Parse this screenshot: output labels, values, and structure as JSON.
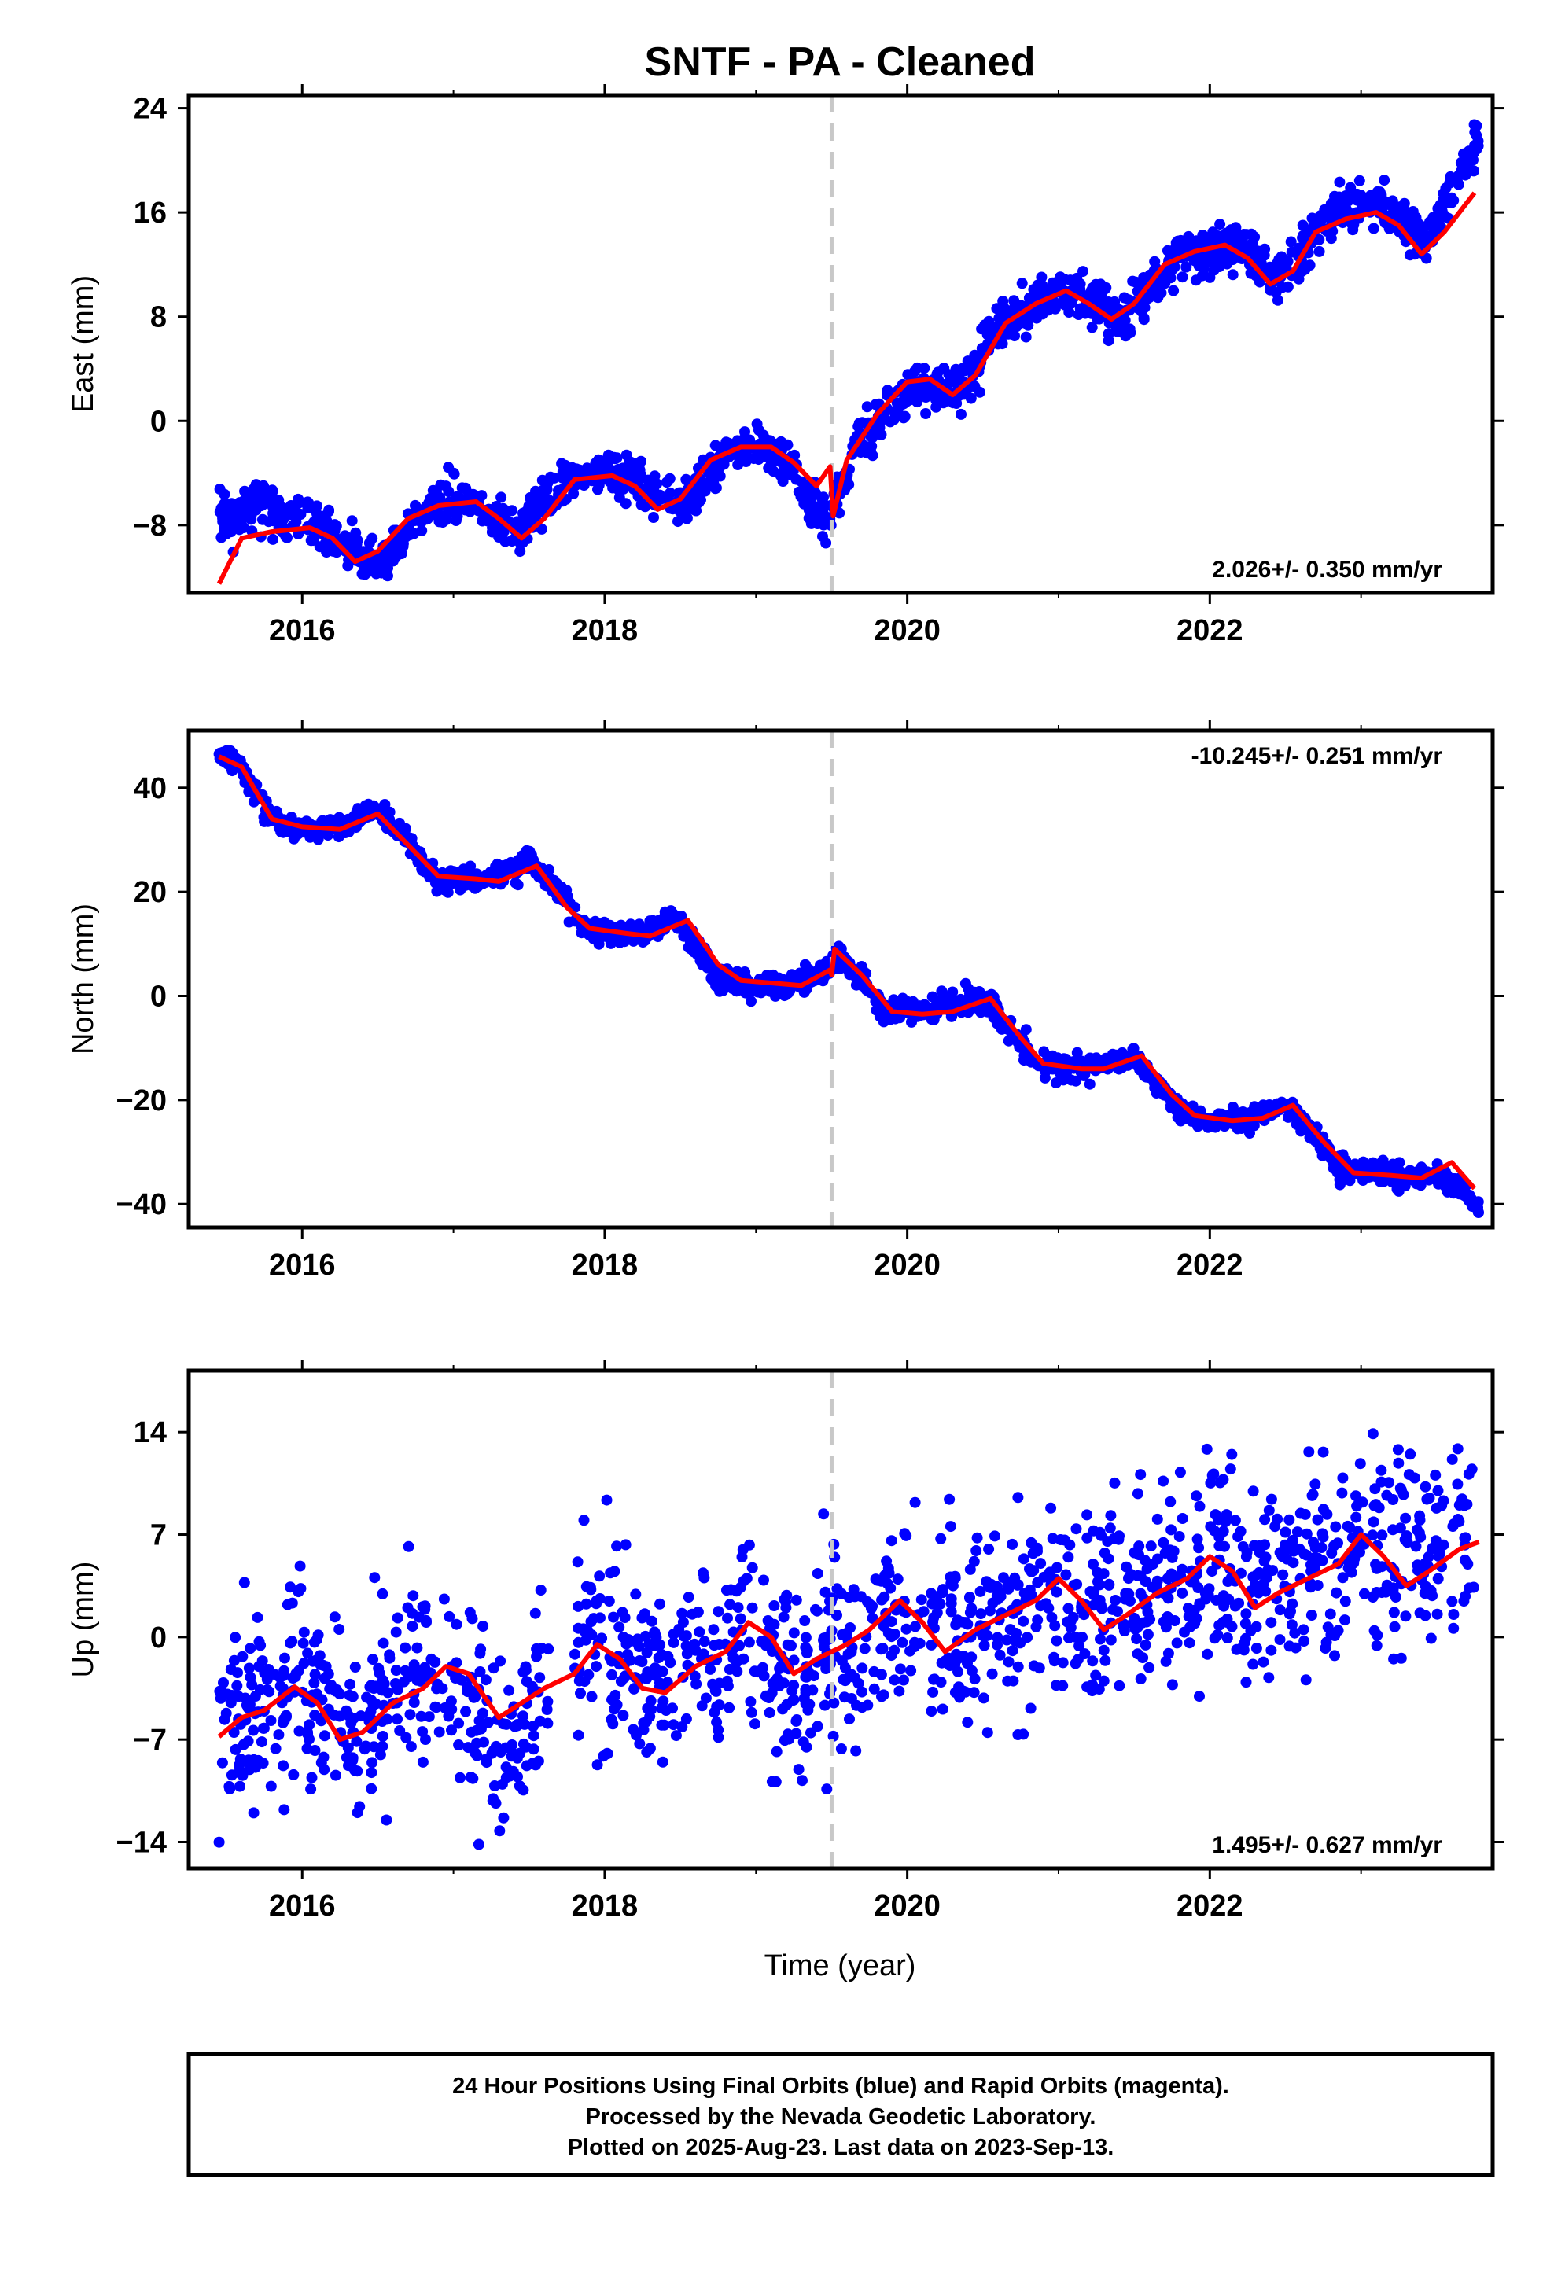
{
  "title": "SNTF  - PA - Cleaned",
  "xlabel": "Time (year)",
  "footer": {
    "line1": "24 Hour Positions Using Final Orbits (blue) and Rapid Orbits (magenta).",
    "line2": "Processed by the Nevada Geodetic Laboratory.",
    "line3": "Plotted on 2025-Aug-23. Last data on 2023-Sep-13."
  },
  "colors": {
    "points": "#0000ff",
    "model": "#ff0000",
    "event_line": "#c8c8c8",
    "frame": "#000000"
  },
  "chart_data": [
    {
      "type": "scatter",
      "name": "east",
      "ylabel": "East (mm)",
      "rate_label": "2.026+/- 0.350 mm/yr",
      "xlim": [
        2015.25,
        2023.87
      ],
      "ylim": [
        -13.2,
        25
      ],
      "xticks": [
        2016,
        2018,
        2020,
        2022
      ],
      "yticks": [
        -8,
        0,
        8,
        16,
        24
      ],
      "event_x": 2019.5,
      "scatter_anchors": [
        [
          2015.45,
          -7.5
        ],
        [
          2015.6,
          -7.0
        ],
        [
          2015.75,
          -6.0
        ],
        [
          2015.9,
          -8.0
        ],
        [
          2016.0,
          -7.0
        ],
        [
          2016.15,
          -8.5
        ],
        [
          2016.3,
          -10.0
        ],
        [
          2016.45,
          -11.0
        ],
        [
          2016.6,
          -10.0
        ],
        [
          2016.8,
          -7.0
        ],
        [
          2017.0,
          -6.0
        ],
        [
          2017.15,
          -6.0
        ],
        [
          2017.3,
          -8.0
        ],
        [
          2017.45,
          -8.5
        ],
        [
          2017.6,
          -6.0
        ],
        [
          2017.8,
          -4.5
        ],
        [
          2018.0,
          -4.0
        ],
        [
          2018.2,
          -4.5
        ],
        [
          2018.4,
          -6.0
        ],
        [
          2018.55,
          -6.5
        ],
        [
          2018.7,
          -4.0
        ],
        [
          2018.85,
          -2.5
        ],
        [
          2019.0,
          -2.0
        ],
        [
          2019.2,
          -3.0
        ],
        [
          2019.35,
          -6.0
        ],
        [
          2019.49,
          -8.0
        ],
        [
          2019.52,
          -6.0
        ],
        [
          2019.65,
          -2.0
        ],
        [
          2019.9,
          1.0
        ],
        [
          2020.05,
          2.5
        ],
        [
          2020.25,
          2.5
        ],
        [
          2020.4,
          3.0
        ],
        [
          2020.6,
          7.0
        ],
        [
          2020.8,
          9.0
        ],
        [
          2021.0,
          10.0
        ],
        [
          2021.2,
          9.5
        ],
        [
          2021.4,
          8.0
        ],
        [
          2021.6,
          10.0
        ],
        [
          2021.8,
          12.5
        ],
        [
          2022.0,
          13.0
        ],
        [
          2022.2,
          13.5
        ],
        [
          2022.4,
          11.0
        ],
        [
          2022.55,
          11.5
        ],
        [
          2022.7,
          15.0
        ],
        [
          2022.9,
          16.5
        ],
        [
          2023.1,
          16.5
        ],
        [
          2023.3,
          15.0
        ],
        [
          2023.45,
          14.0
        ],
        [
          2023.6,
          18.0
        ],
        [
          2023.75,
          21.0
        ]
      ],
      "scatter_spread": 1.1,
      "model": [
        [
          2015.45,
          -12.5
        ],
        [
          2015.6,
          -9.0
        ],
        [
          2015.8,
          -8.5
        ],
        [
          2016.05,
          -8.2
        ],
        [
          2016.2,
          -9.0
        ],
        [
          2016.35,
          -10.8
        ],
        [
          2016.5,
          -10.0
        ],
        [
          2016.7,
          -7.5
        ],
        [
          2016.9,
          -6.5
        ],
        [
          2017.15,
          -6.2
        ],
        [
          2017.3,
          -7.5
        ],
        [
          2017.45,
          -9.0
        ],
        [
          2017.6,
          -7.5
        ],
        [
          2017.8,
          -4.5
        ],
        [
          2018.05,
          -4.2
        ],
        [
          2018.2,
          -5.0
        ],
        [
          2018.35,
          -6.8
        ],
        [
          2018.5,
          -6.0
        ],
        [
          2018.7,
          -3.0
        ],
        [
          2018.9,
          -2.0
        ],
        [
          2019.1,
          -2.0
        ],
        [
          2019.25,
          -3.2
        ],
        [
          2019.4,
          -5.0
        ],
        [
          2019.49,
          -3.5
        ],
        [
          2019.51,
          -7.3
        ],
        [
          2019.6,
          -3.0
        ],
        [
          2019.8,
          0.5
        ],
        [
          2020.0,
          3.0
        ],
        [
          2020.15,
          3.2
        ],
        [
          2020.3,
          2.0
        ],
        [
          2020.45,
          3.5
        ],
        [
          2020.65,
          7.5
        ],
        [
          2020.85,
          9.0
        ],
        [
          2021.05,
          10.0
        ],
        [
          2021.2,
          9.0
        ],
        [
          2021.35,
          7.8
        ],
        [
          2021.5,
          9.0
        ],
        [
          2021.7,
          12.0
        ],
        [
          2021.9,
          13.0
        ],
        [
          2022.1,
          13.5
        ],
        [
          2022.25,
          12.5
        ],
        [
          2022.4,
          10.5
        ],
        [
          2022.55,
          11.5
        ],
        [
          2022.7,
          14.5
        ],
        [
          2022.9,
          15.5
        ],
        [
          2023.1,
          16.0
        ],
        [
          2023.25,
          15.0
        ],
        [
          2023.4,
          12.8
        ],
        [
          2023.55,
          14.5
        ],
        [
          2023.75,
          17.5
        ]
      ]
    },
    {
      "type": "scatter",
      "name": "north",
      "ylabel": "North (mm)",
      "rate_label": "-10.245+/- 0.251 mm/yr",
      "xlim": [
        2015.25,
        2023.87
      ],
      "ylim": [
        -44.5,
        51
      ],
      "xticks": [
        2016,
        2018,
        2020,
        2022
      ],
      "yticks": [
        -40,
        -20,
        0,
        20,
        40
      ],
      "event_x": 2019.5,
      "scatter_anchors": [
        [
          2015.45,
          47
        ],
        [
          2015.6,
          44
        ],
        [
          2015.75,
          36
        ],
        [
          2015.9,
          32
        ],
        [
          2016.1,
          32
        ],
        [
          2016.3,
          33
        ],
        [
          2016.5,
          36
        ],
        [
          2016.7,
          30
        ],
        [
          2016.85,
          23
        ],
        [
          2017.1,
          22
        ],
        [
          2017.3,
          23
        ],
        [
          2017.5,
          26
        ],
        [
          2017.7,
          20
        ],
        [
          2017.85,
          13
        ],
        [
          2018.05,
          12
        ],
        [
          2018.25,
          12
        ],
        [
          2018.45,
          15
        ],
        [
          2018.6,
          10
        ],
        [
          2018.75,
          3
        ],
        [
          2019.0,
          2
        ],
        [
          2019.2,
          2
        ],
        [
          2019.4,
          4
        ],
        [
          2019.5,
          6
        ],
        [
          2019.55,
          8
        ],
        [
          2019.7,
          3
        ],
        [
          2019.85,
          -3
        ],
        [
          2020.1,
          -3
        ],
        [
          2020.3,
          -2
        ],
        [
          2020.5,
          -0.5
        ],
        [
          2020.7,
          -7
        ],
        [
          2020.85,
          -13
        ],
        [
          2021.1,
          -14
        ],
        [
          2021.3,
          -13
        ],
        [
          2021.5,
          -12
        ],
        [
          2021.65,
          -17
        ],
        [
          2021.85,
          -23
        ],
        [
          2022.1,
          -24
        ],
        [
          2022.3,
          -23
        ],
        [
          2022.5,
          -21
        ],
        [
          2022.7,
          -27
        ],
        [
          2022.85,
          -33
        ],
        [
          2023.1,
          -34
        ],
        [
          2023.3,
          -35
        ],
        [
          2023.5,
          -34
        ],
        [
          2023.7,
          -38
        ],
        [
          2023.78,
          -42
        ]
      ],
      "scatter_spread": 1.4,
      "model": [
        [
          2015.45,
          46
        ],
        [
          2015.6,
          44
        ],
        [
          2015.8,
          34
        ],
        [
          2016.0,
          32.5
        ],
        [
          2016.25,
          32
        ],
        [
          2016.5,
          35
        ],
        [
          2016.7,
          29
        ],
        [
          2016.9,
          23
        ],
        [
          2017.15,
          22.5
        ],
        [
          2017.3,
          22
        ],
        [
          2017.55,
          25
        ],
        [
          2017.75,
          17
        ],
        [
          2017.9,
          13
        ],
        [
          2018.15,
          12
        ],
        [
          2018.3,
          11.5
        ],
        [
          2018.55,
          14.5
        ],
        [
          2018.75,
          6
        ],
        [
          2018.9,
          3
        ],
        [
          2019.1,
          2.5
        ],
        [
          2019.3,
          2
        ],
        [
          2019.49,
          5
        ],
        [
          2019.5,
          4
        ],
        [
          2019.52,
          9
        ],
        [
          2019.7,
          4
        ],
        [
          2019.9,
          -3
        ],
        [
          2020.1,
          -3.5
        ],
        [
          2020.3,
          -3
        ],
        [
          2020.55,
          -0.5
        ],
        [
          2020.75,
          -8
        ],
        [
          2020.9,
          -13
        ],
        [
          2021.15,
          -14
        ],
        [
          2021.3,
          -14
        ],
        [
          2021.55,
          -11.5
        ],
        [
          2021.75,
          -19
        ],
        [
          2021.9,
          -23
        ],
        [
          2022.15,
          -24
        ],
        [
          2022.35,
          -23.5
        ],
        [
          2022.55,
          -21
        ],
        [
          2022.75,
          -28
        ],
        [
          2022.95,
          -34
        ],
        [
          2023.2,
          -34.5
        ],
        [
          2023.4,
          -35
        ],
        [
          2023.6,
          -32
        ],
        [
          2023.75,
          -37
        ]
      ]
    },
    {
      "type": "scatter",
      "name": "up",
      "ylabel": "Up (mm)",
      "rate_label": "1.495+/- 0.627 mm/yr",
      "xlim": [
        2015.25,
        2023.87
      ],
      "ylim": [
        -15.8,
        18.2
      ],
      "xticks": [
        2016,
        2018,
        2020,
        2022
      ],
      "yticks": [
        -14,
        -7,
        0,
        7,
        14
      ],
      "event_x": 2019.5,
      "scatter_anchors": [
        [
          2015.45,
          -6
        ],
        [
          2015.7,
          -4.5
        ],
        [
          2016.0,
          -3
        ],
        [
          2016.25,
          -6
        ],
        [
          2016.5,
          -4.5
        ],
        [
          2016.8,
          -2
        ],
        [
          2017.1,
          -4
        ],
        [
          2017.3,
          -7
        ],
        [
          2017.55,
          -5
        ],
        [
          2017.8,
          -0.5
        ],
        [
          2018.1,
          -1.5
        ],
        [
          2018.3,
          -3.5
        ],
        [
          2018.6,
          -2
        ],
        [
          2018.9,
          0
        ],
        [
          2019.1,
          -2
        ],
        [
          2019.3,
          -4
        ],
        [
          2019.5,
          -1
        ],
        [
          2019.7,
          0
        ],
        [
          2019.9,
          1.5
        ],
        [
          2020.15,
          -0.5
        ],
        [
          2020.4,
          0
        ],
        [
          2020.6,
          1.5
        ],
        [
          2020.9,
          3
        ],
        [
          2021.2,
          2
        ],
        [
          2021.5,
          2.5
        ],
        [
          2021.8,
          4
        ],
        [
          2022.0,
          5
        ],
        [
          2022.25,
          2.5
        ],
        [
          2022.5,
          3.5
        ],
        [
          2022.75,
          5
        ],
        [
          2023.0,
          6.5
        ],
        [
          2023.3,
          5
        ],
        [
          2023.6,
          6
        ],
        [
          2023.78,
          8
        ]
      ],
      "scatter_spread": 3.2,
      "model": [
        [
          2015.45,
          -6.8
        ],
        [
          2015.6,
          -5.5
        ],
        [
          2015.75,
          -5.0
        ],
        [
          2015.95,
          -3.4
        ],
        [
          2016.1,
          -4.5
        ],
        [
          2016.25,
          -7.0
        ],
        [
          2016.4,
          -6.5
        ],
        [
          2016.6,
          -4.5
        ],
        [
          2016.8,
          -3.5
        ],
        [
          2016.95,
          -2.0
        ],
        [
          2017.1,
          -2.5
        ],
        [
          2017.3,
          -5.5
        ],
        [
          2017.45,
          -4.5
        ],
        [
          2017.6,
          -3.5
        ],
        [
          2017.8,
          -2.5
        ],
        [
          2017.95,
          -0.5
        ],
        [
          2018.1,
          -1.5
        ],
        [
          2018.25,
          -3.5
        ],
        [
          2018.4,
          -3.8
        ],
        [
          2018.6,
          -2.0
        ],
        [
          2018.8,
          -1.0
        ],
        [
          2018.95,
          1.0
        ],
        [
          2019.1,
          0.0
        ],
        [
          2019.25,
          -2.5
        ],
        [
          2019.4,
          -1.5
        ],
        [
          2019.6,
          -0.5
        ],
        [
          2019.75,
          0.5
        ],
        [
          2019.95,
          2.5
        ],
        [
          2020.1,
          1.0
        ],
        [
          2020.25,
          -1.0
        ],
        [
          2020.45,
          0.5
        ],
        [
          2020.65,
          1.5
        ],
        [
          2020.85,
          2.5
        ],
        [
          2021.0,
          4.0
        ],
        [
          2021.15,
          2.5
        ],
        [
          2021.3,
          0.5
        ],
        [
          2021.45,
          1.5
        ],
        [
          2021.65,
          3.0
        ],
        [
          2021.85,
          4.0
        ],
        [
          2022.0,
          5.5
        ],
        [
          2022.15,
          4.5
        ],
        [
          2022.3,
          2.0
        ],
        [
          2022.45,
          3.0
        ],
        [
          2022.65,
          4.0
        ],
        [
          2022.85,
          5.0
        ],
        [
          2023.0,
          7.0
        ],
        [
          2023.15,
          5.5
        ],
        [
          2023.3,
          3.5
        ],
        [
          2023.45,
          4.5
        ],
        [
          2023.65,
          6.0
        ],
        [
          2023.78,
          6.5
        ]
      ]
    }
  ]
}
